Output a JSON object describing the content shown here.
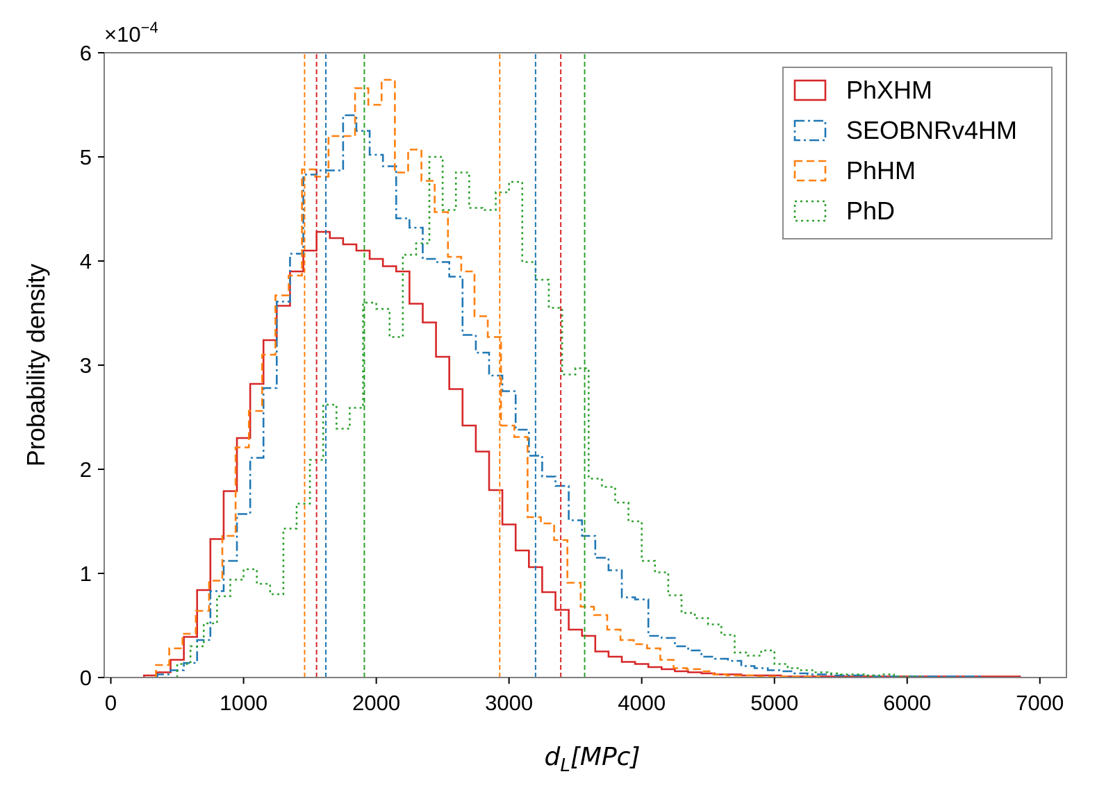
{
  "chart_data": {
    "type": "histogram",
    "xlabel": "d_L[MPc]",
    "xlabel_parts": {
      "main": "d",
      "sub": "L",
      "rest": "[MPc]"
    },
    "ylabel": "Probability density",
    "multiplier": {
      "base": "×10",
      "exp": "−4"
    },
    "xlim": [
      -50,
      7200
    ],
    "ylim": [
      0,
      6
    ],
    "xticks": [
      0,
      1000,
      2000,
      3000,
      4000,
      5000,
      6000,
      7000
    ],
    "xtick_labels": [
      "0",
      "1000",
      "2000",
      "3000",
      "4000",
      "5000",
      "6000",
      "7000"
    ],
    "yticks": [
      0,
      1,
      2,
      3,
      4,
      5,
      6
    ],
    "ytick_labels": [
      "0",
      "1",
      "2",
      "3",
      "4",
      "5",
      "6"
    ],
    "legend_position": "top-right",
    "series": [
      {
        "name": "PhXHM",
        "color": "#d62728",
        "dash": "solid",
        "edges": [
          250,
          350,
          450,
          550,
          650,
          750,
          850,
          950,
          1050,
          1150,
          1250,
          1350,
          1450,
          1550,
          1650,
          1750,
          1850,
          1950,
          2050,
          2150,
          2250,
          2350,
          2450,
          2550,
          2650,
          2750,
          2850,
          2950,
          3050,
          3150,
          3250,
          3350,
          3450,
          3550,
          3650,
          3750,
          3850,
          3950,
          4050,
          4150,
          4250,
          4350,
          4450,
          4550,
          4650,
          4750,
          4850,
          4950,
          5050,
          5150,
          5250,
          5350,
          5450,
          5550,
          5650,
          5750,
          5850,
          5950,
          6050,
          6150,
          6250,
          6350,
          6450,
          6550,
          6650,
          6750,
          6850
        ],
        "values": [
          0.02,
          0.05,
          0.17,
          0.39,
          0.84,
          1.33,
          1.79,
          2.3,
          2.82,
          3.24,
          3.57,
          3.9,
          4.1,
          4.28,
          4.22,
          4.16,
          4.1,
          4.02,
          3.95,
          3.9,
          3.59,
          3.41,
          3.08,
          2.77,
          2.42,
          2.17,
          1.8,
          1.47,
          1.22,
          1.06,
          0.82,
          0.65,
          0.46,
          0.4,
          0.25,
          0.2,
          0.15,
          0.13,
          0.1,
          0.08,
          0.06,
          0.05,
          0.04,
          0.03,
          0.03,
          0.02,
          0.02,
          0.02,
          0.01,
          0.01,
          0.01,
          0.01,
          0.01,
          0.01,
          0.01,
          0.01,
          0.01,
          0.01,
          0.01,
          0.01,
          0.01,
          0.01,
          0.01,
          0.01,
          0.01,
          0.01
        ],
        "ci": [
          1550,
          3390
        ]
      },
      {
        "name": "SEOBNRv4HM",
        "color": "#1f77b4",
        "dash": "dashdot",
        "edges": [
          350,
          450,
          550,
          650,
          750,
          850,
          950,
          1050,
          1150,
          1250,
          1350,
          1450,
          1550,
          1650,
          1750,
          1850,
          1950,
          2050,
          2150,
          2250,
          2350,
          2450,
          2550,
          2650,
          2750,
          2850,
          2950,
          3050,
          3150,
          3250,
          3350,
          3450,
          3550,
          3650,
          3750,
          3850,
          3950,
          4050,
          4150,
          4250,
          4350,
          4450,
          4550,
          4650,
          4750,
          4850,
          4950,
          5050,
          5150,
          5250,
          5350,
          5450,
          5550,
          5650,
          5750,
          5850,
          5950,
          6050,
          6150,
          6250,
          6350,
          6450,
          6550
        ],
        "values": [
          0.03,
          0.07,
          0.14,
          0.36,
          0.83,
          1.12,
          1.57,
          2.11,
          2.78,
          3.61,
          4.07,
          4.83,
          4.87,
          4.87,
          5.4,
          5.25,
          5.02,
          4.91,
          4.41,
          4.32,
          4.02,
          3.99,
          3.85,
          3.29,
          3.12,
          2.9,
          2.75,
          2.38,
          2.13,
          1.93,
          1.84,
          1.51,
          1.36,
          1.15,
          1.03,
          0.77,
          0.75,
          0.4,
          0.38,
          0.3,
          0.26,
          0.2,
          0.18,
          0.16,
          0.11,
          0.09,
          0.07,
          0.06,
          0.04,
          0.03,
          0.03,
          0.02,
          0.02,
          0.02,
          0.01,
          0.01,
          0.01,
          0.01,
          0.01,
          0.01,
          0.01,
          0.01
        ],
        "ci": [
          1620,
          3200
        ]
      },
      {
        "name": "PhHM",
        "color": "#ff7f0e",
        "dash": "dashed",
        "edges": [
          340,
          440,
          540,
          640,
          740,
          840,
          940,
          1040,
          1140,
          1240,
          1340,
          1440,
          1540,
          1640,
          1740,
          1840,
          1940,
          2040,
          2140,
          2240,
          2340,
          2440,
          2540,
          2640,
          2740,
          2840,
          2940,
          3040,
          3140,
          3240,
          3340,
          3440,
          3540,
          3640,
          3740,
          3840,
          3940,
          4040,
          4140,
          4240,
          4340,
          4440,
          4540,
          4640,
          4740,
          4840,
          4940,
          5040,
          5140,
          5240,
          5340
        ],
        "values": [
          0.12,
          0.28,
          0.42,
          0.64,
          0.93,
          1.36,
          2.21,
          2.56,
          3.1,
          3.67,
          3.86,
          4.88,
          4.81,
          5.2,
          5.2,
          5.66,
          5.5,
          5.74,
          4.85,
          5.07,
          4.77,
          4.47,
          4.04,
          3.9,
          3.47,
          3.27,
          2.42,
          2.31,
          1.54,
          1.48,
          1.32,
          0.91,
          0.68,
          0.6,
          0.46,
          0.36,
          0.32,
          0.28,
          0.17,
          0.09,
          0.08,
          0.06,
          0.03,
          0.02,
          0.02,
          0.01,
          0.01,
          0.01,
          0.01,
          0.01
        ],
        "ci": [
          1460,
          2930
        ]
      },
      {
        "name": "PhD",
        "color": "#2ca02c",
        "dash": "dotted",
        "edges": [
          500,
          600,
          700,
          800,
          900,
          1000,
          1100,
          1200,
          1300,
          1400,
          1500,
          1600,
          1700,
          1800,
          1900,
          2000,
          2100,
          2200,
          2300,
          2400,
          2500,
          2600,
          2700,
          2800,
          2900,
          3000,
          3100,
          3200,
          3300,
          3400,
          3500,
          3600,
          3700,
          3800,
          3900,
          4000,
          4100,
          4200,
          4300,
          4400,
          4500,
          4600,
          4700,
          4800,
          4900,
          5000,
          5100,
          5200,
          5300,
          5400,
          5500,
          5600,
          5700,
          5800,
          5900,
          6000,
          6100
        ],
        "values": [
          0.13,
          0.3,
          0.52,
          0.78,
          0.94,
          1.04,
          0.9,
          0.8,
          1.43,
          1.67,
          2.09,
          2.62,
          2.39,
          2.59,
          3.6,
          3.54,
          3.27,
          4.06,
          4.17,
          5.0,
          4.49,
          4.85,
          4.51,
          4.49,
          4.66,
          4.76,
          3.99,
          3.82,
          3.55,
          2.91,
          2.97,
          1.91,
          1.83,
          1.68,
          1.5,
          1.12,
          1.01,
          0.79,
          0.62,
          0.57,
          0.51,
          0.41,
          0.24,
          0.21,
          0.26,
          0.13,
          0.09,
          0.07,
          0.05,
          0.04,
          0.03,
          0.03,
          0.02,
          0.03,
          0.01,
          0.01
        ],
        "ci": [
          1910,
          3570
        ]
      }
    ]
  }
}
